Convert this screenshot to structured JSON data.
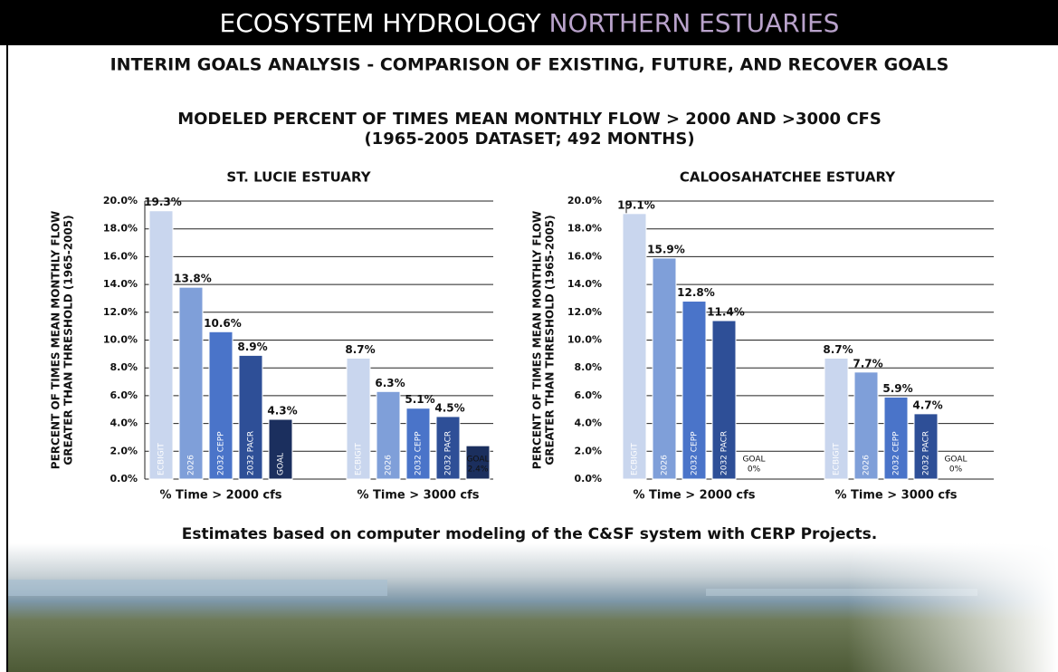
{
  "header": {
    "title_part1": "ECOSYSTEM HYDROLOGY",
    "title_part2": "NORTHERN ESTUARIES",
    "subtitle": "INTERIM GOALS ANALYSIS - COMPARISON OF EXISTING, FUTURE, AND RECOVER GOALS"
  },
  "chart_heading": [
    "MODELED PERCENT OF TIMES MEAN MONTHLY FLOW > 2000 AND >3000 CFS",
    "(1965-2005 DATASET; 492 MONTHS)"
  ],
  "footer": "Estimates based on computer modeling of the C&SF system with CERP Projects.",
  "chart_data": [
    {
      "type": "bar",
      "title": "ST. LUCIE ESTUARY",
      "ylabel": [
        "PERCENT OF TIMES MEAN MONTHLY FLOW",
        "GREATER THAN THRESHOLD (1965-2005)"
      ],
      "categories": [
        "% Time > 2000 cfs",
        "% Time > 3000 cfs"
      ],
      "series": [
        {
          "name": "ECBIGIT",
          "color": "#c9d6ee",
          "values": [
            19.3,
            8.7
          ],
          "value_labels": [
            "19.3%",
            "8.7%"
          ]
        },
        {
          "name": "2026",
          "color": "#7f9fd9",
          "values": [
            13.8,
            6.3
          ],
          "value_labels": [
            "13.8%",
            "6.3%"
          ]
        },
        {
          "name": "2032 CEPP",
          "color": "#4a74c9",
          "values": [
            10.6,
            5.1
          ],
          "value_labels": [
            "10.6%",
            "5.1%"
          ]
        },
        {
          "name": "2032 PACR",
          "color": "#2e4f97",
          "values": [
            8.9,
            4.5
          ],
          "value_labels": [
            "8.9%",
            "4.5%"
          ]
        },
        {
          "name": "GOAL",
          "color": "#1b2f5e",
          "values": [
            4.3,
            2.4
          ],
          "value_labels": [
            "4.3%",
            "2.4%"
          ]
        }
      ],
      "ylim": [
        0,
        20
      ],
      "yticks": [
        {
          "value": 0,
          "label": "0.0%"
        },
        {
          "value": 2,
          "label": "2.0%"
        },
        {
          "value": 4,
          "label": "4.0%"
        },
        {
          "value": 6,
          "label": "6.0%"
        },
        {
          "value": 8,
          "label": "8.0%"
        },
        {
          "value": 10,
          "label": "10.0%"
        },
        {
          "value": 12,
          "label": "12.0%"
        },
        {
          "value": 14,
          "label": "14.0%"
        },
        {
          "value": 16,
          "label": "16.0%"
        },
        {
          "value": 18,
          "label": "18.0%"
        },
        {
          "value": 20,
          "label": "20.0%"
        }
      ],
      "grid": true
    },
    {
      "type": "bar",
      "title": "CALOOSAHATCHEE ESTUARY",
      "ylabel": [
        "PERCENT OF TIMES MEAN MONTHLY FLOW",
        "GREATER THAN THRESHOLD (1965-2005)"
      ],
      "categories": [
        "% Time > 2000 cfs",
        "% Time > 3000 cfs"
      ],
      "series": [
        {
          "name": "ECBIGIT",
          "color": "#c9d6ee",
          "values": [
            19.1,
            8.7
          ],
          "value_labels": [
            "19.1%",
            "8.7%"
          ]
        },
        {
          "name": "2026",
          "color": "#7f9fd9",
          "values": [
            15.9,
            7.7
          ],
          "value_labels": [
            "15.9%",
            "7.7%"
          ]
        },
        {
          "name": "2032 CEPP",
          "color": "#4a74c9",
          "values": [
            12.8,
            5.9
          ],
          "value_labels": [
            "12.8%",
            "5.9%"
          ]
        },
        {
          "name": "2032 PACR",
          "color": "#2e4f97",
          "values": [
            11.4,
            4.7
          ],
          "value_labels": [
            "11.4%",
            "4.7%"
          ]
        },
        {
          "name": "GOAL",
          "color": "#1b2f5e",
          "values": [
            0,
            0
          ],
          "value_labels": [
            "0%",
            "0%"
          ]
        }
      ],
      "ylim": [
        0,
        20
      ],
      "yticks": [
        {
          "value": 0,
          "label": "0.0%"
        },
        {
          "value": 2,
          "label": "2.0%"
        },
        {
          "value": 4,
          "label": "4.0%"
        },
        {
          "value": 6,
          "label": "6.0%"
        },
        {
          "value": 8,
          "label": "8.0%"
        },
        {
          "value": 10,
          "label": "10.0%"
        },
        {
          "value": 12,
          "label": "12.0%"
        },
        {
          "value": 14,
          "label": "14.0%"
        },
        {
          "value": 16,
          "label": "16.0%"
        },
        {
          "value": 18,
          "label": "18.0%"
        },
        {
          "value": 20,
          "label": "20.0%"
        }
      ],
      "grid": true
    }
  ]
}
